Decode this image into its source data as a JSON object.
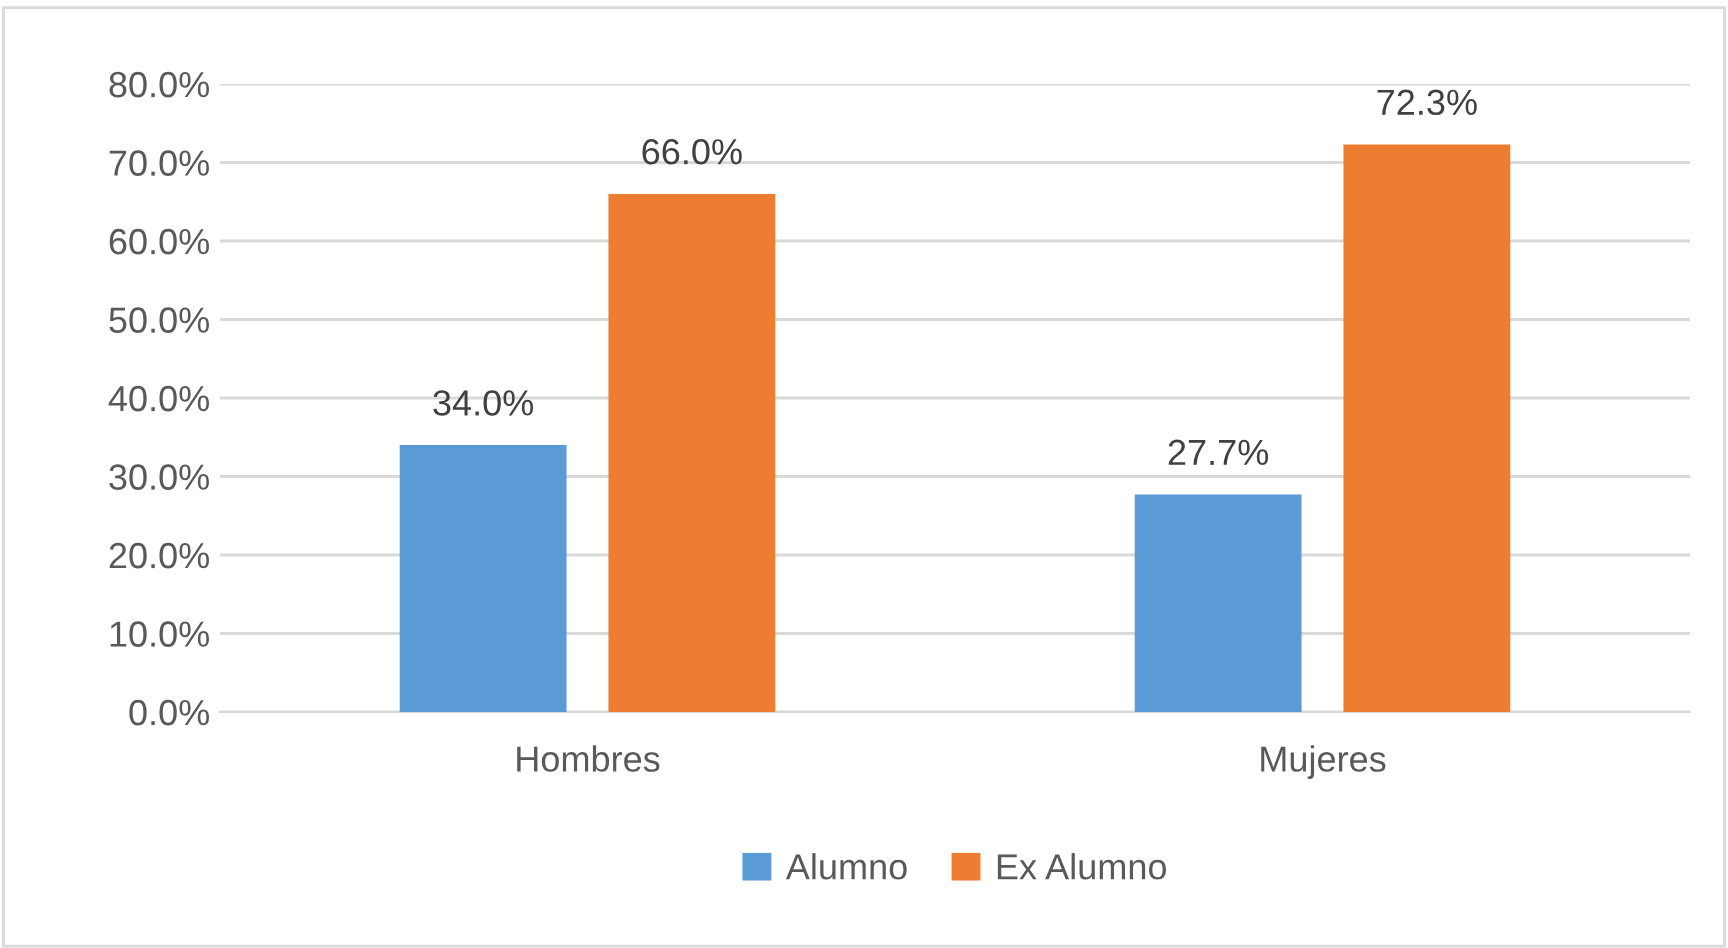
{
  "chart_data": {
    "type": "bar",
    "categories": [
      "Hombres",
      "Mujeres"
    ],
    "series": [
      {
        "name": "Alumno",
        "color": "#5b9bd5",
        "values": [
          34.0,
          27.7
        ],
        "value_labels": [
          "34.0%",
          "27.7%"
        ]
      },
      {
        "name": "Ex Alumno",
        "color": "#ed7d31",
        "values": [
          66.0,
          72.3
        ],
        "value_labels": [
          "66.0%",
          "72.3%"
        ]
      }
    ],
    "ylim": [
      0,
      80
    ],
    "yticks": [
      {
        "value": 0,
        "label": "0.0%"
      },
      {
        "value": 10,
        "label": "10.0%"
      },
      {
        "value": 20,
        "label": "20.0%"
      },
      {
        "value": 30,
        "label": "30.0%"
      },
      {
        "value": 40,
        "label": "40.0%"
      },
      {
        "value": 50,
        "label": "50.0%"
      },
      {
        "value": 60,
        "label": "60.0%"
      },
      {
        "value": 70,
        "label": "70.0%"
      },
      {
        "value": 80,
        "label": "80.0%"
      }
    ],
    "grid": "y",
    "legend": "bottom"
  }
}
